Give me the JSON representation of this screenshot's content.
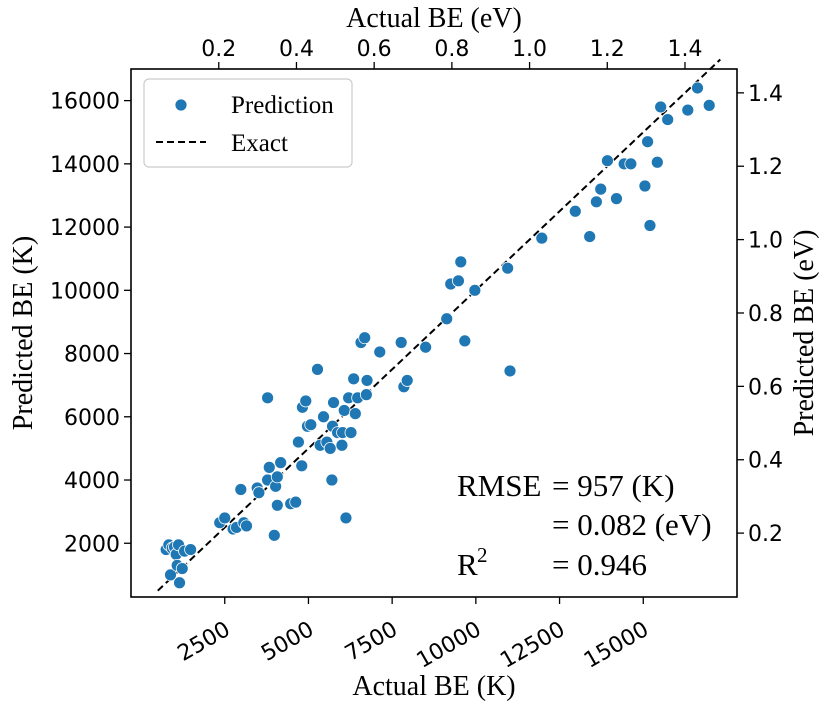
{
  "chart_data": {
    "type": "scatter",
    "xlabel_bottom": "Actual BE (K)",
    "xlabel_top": "Actual BE (eV)",
    "ylabel_left": "Predicted BE (K)",
    "ylabel_right": "Predicted BE (eV)",
    "xlim": [
      -300,
      17800
    ],
    "ylim": [
      300,
      17000
    ],
    "xlim_ev": [
      -0.0259,
      1.5339
    ],
    "ylim_ev": [
      0.0259,
      1.465
    ],
    "x_ticks": [
      2500,
      5000,
      7500,
      10000,
      12500,
      15000
    ],
    "x_tick_labels": [
      "2500",
      "5000",
      "7500",
      "10000",
      "12500",
      "15000"
    ],
    "y_ticks": [
      2000,
      4000,
      6000,
      8000,
      10000,
      12000,
      14000,
      16000
    ],
    "y_tick_labels": [
      "2000",
      "4000",
      "6000",
      "8000",
      "10000",
      "12000",
      "14000",
      "16000"
    ],
    "x_top_ticks": [
      0.2,
      0.4,
      0.6,
      0.8,
      1.0,
      1.2,
      1.4
    ],
    "x_top_tick_labels": [
      "0.2",
      "0.4",
      "0.6",
      "0.8",
      "1.0",
      "1.2",
      "1.4"
    ],
    "y_right_ticks": [
      0.2,
      0.4,
      0.6,
      0.8,
      1.0,
      1.2,
      1.4
    ],
    "y_right_tick_labels": [
      "0.2",
      "0.4",
      "0.6",
      "0.8",
      "1.0",
      "1.2",
      "1.4"
    ],
    "legend": {
      "location": "upper-left",
      "entries": [
        "Prediction",
        "Exact"
      ]
    },
    "marker_color": "#1f77b4",
    "line_color": "#000000",
    "exact_line": {
      "x": [
        500,
        17300
      ],
      "y": [
        500,
        17300
      ]
    },
    "annotation": {
      "rmse_label": "RMSE",
      "rmse_k": "= 957 (K)",
      "rmse_ev": "= 0.082 (eV)",
      "r2_label": "R",
      "r2_superscript": "2",
      "r2_value": "= 0.946"
    },
    "series": [
      {
        "name": "Prediction",
        "points": [
          [
            750,
            1800
          ],
          [
            830,
            1950
          ],
          [
            880,
            1000
          ],
          [
            930,
            1850
          ],
          [
            1000,
            1880
          ],
          [
            1050,
            1650
          ],
          [
            1080,
            1300
          ],
          [
            1120,
            1950
          ],
          [
            1150,
            750
          ],
          [
            1230,
            1200
          ],
          [
            1300,
            1750
          ],
          [
            1480,
            1800
          ],
          [
            2350,
            2650
          ],
          [
            2500,
            2800
          ],
          [
            2750,
            2450
          ],
          [
            2850,
            2500
          ],
          [
            2980,
            3700
          ],
          [
            3070,
            2650
          ],
          [
            3150,
            2550
          ],
          [
            3470,
            3750
          ],
          [
            3520,
            3600
          ],
          [
            3780,
            6600
          ],
          [
            3780,
            4000
          ],
          [
            3830,
            4400
          ],
          [
            3980,
            2250
          ],
          [
            4020,
            3800
          ],
          [
            4070,
            4100
          ],
          [
            4070,
            3200
          ],
          [
            4170,
            4550
          ],
          [
            4470,
            3250
          ],
          [
            4620,
            3300
          ],
          [
            4700,
            5200
          ],
          [
            4800,
            4450
          ],
          [
            4820,
            6300
          ],
          [
            4920,
            6500
          ],
          [
            4970,
            5700
          ],
          [
            5070,
            5750
          ],
          [
            5270,
            7500
          ],
          [
            5350,
            5100
          ],
          [
            5450,
            6000
          ],
          [
            5550,
            5200
          ],
          [
            5650,
            5000
          ],
          [
            5700,
            4000
          ],
          [
            5720,
            5700
          ],
          [
            5750,
            6450
          ],
          [
            5870,
            5500
          ],
          [
            6000,
            5100
          ],
          [
            6020,
            5500
          ],
          [
            6070,
            6200
          ],
          [
            6120,
            2800
          ],
          [
            6200,
            6600
          ],
          [
            6270,
            5500
          ],
          [
            6350,
            7200
          ],
          [
            6400,
            6100
          ],
          [
            6470,
            6600
          ],
          [
            6570,
            8350
          ],
          [
            6680,
            8500
          ],
          [
            6730,
            6700
          ],
          [
            6750,
            7150
          ],
          [
            7130,
            8050
          ],
          [
            7770,
            8350
          ],
          [
            7850,
            6950
          ],
          [
            7950,
            7150
          ],
          [
            8500,
            8200
          ],
          [
            9130,
            9100
          ],
          [
            9250,
            10200
          ],
          [
            9480,
            10300
          ],
          [
            9550,
            10900
          ],
          [
            9670,
            8400
          ],
          [
            9970,
            10000
          ],
          [
            10950,
            10700
          ],
          [
            11020,
            7450
          ],
          [
            11970,
            11650
          ],
          [
            12970,
            12500
          ],
          [
            13400,
            11700
          ],
          [
            13600,
            12800
          ],
          [
            13730,
            13200
          ],
          [
            13930,
            14100
          ],
          [
            14200,
            12900
          ],
          [
            14430,
            14000
          ],
          [
            14630,
            14000
          ],
          [
            15050,
            13300
          ],
          [
            15130,
            14700
          ],
          [
            15200,
            12050
          ],
          [
            15420,
            14050
          ],
          [
            15520,
            15800
          ],
          [
            15730,
            15400
          ],
          [
            16330,
            15700
          ],
          [
            16620,
            16400
          ],
          [
            16970,
            15850
          ]
        ]
      }
    ]
  }
}
